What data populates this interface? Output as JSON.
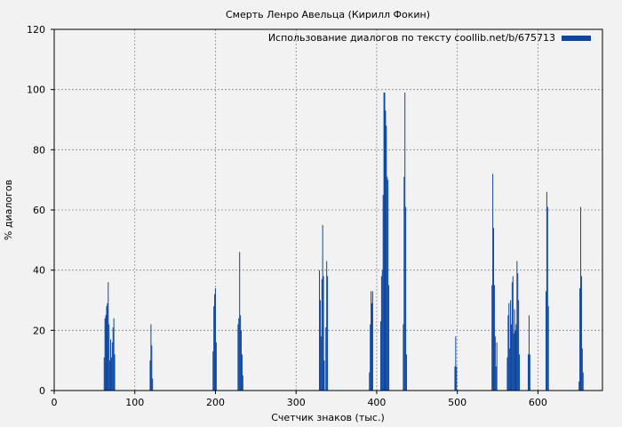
{
  "chart_data": {
    "type": "bar",
    "title": "Смерть Ленро Авельца (Кирилл Фокин)",
    "xlabel": "Счетчик знаков (тыс.)",
    "ylabel": "% диалогов",
    "xlim": [
      0,
      680
    ],
    "ylim": [
      0,
      120
    ],
    "xticks": [
      0,
      100,
      200,
      300,
      400,
      500,
      600
    ],
    "yticks": [
      0,
      20,
      40,
      60,
      80,
      100,
      120
    ],
    "grid": true,
    "legend_position": "top-right",
    "bar_color": "#0d47a1",
    "series": [
      {
        "name": "Использование диалогов по тексту coollib.net/b/675713",
        "points": [
          {
            "x": 62,
            "y": 11
          },
          {
            "x": 63,
            "y": 24
          },
          {
            "x": 64,
            "y": 25
          },
          {
            "x": 65,
            "y": 28
          },
          {
            "x": 66,
            "y": 29
          },
          {
            "x": 67,
            "y": 36
          },
          {
            "x": 68,
            "y": 22
          },
          {
            "x": 69,
            "y": 10
          },
          {
            "x": 70,
            "y": 17
          },
          {
            "x": 71,
            "y": 11
          },
          {
            "x": 72,
            "y": 16
          },
          {
            "x": 73,
            "y": 21
          },
          {
            "x": 74,
            "y": 24
          },
          {
            "x": 75,
            "y": 12
          },
          {
            "x": 119,
            "y": 10
          },
          {
            "x": 120,
            "y": 22
          },
          {
            "x": 121,
            "y": 15
          },
          {
            "x": 122,
            "y": 4
          },
          {
            "x": 197,
            "y": 13
          },
          {
            "x": 198,
            "y": 28
          },
          {
            "x": 199,
            "y": 32
          },
          {
            "x": 200,
            "y": 34
          },
          {
            "x": 201,
            "y": 16
          },
          {
            "x": 228,
            "y": 22
          },
          {
            "x": 229,
            "y": 24
          },
          {
            "x": 230,
            "y": 46
          },
          {
            "x": 231,
            "y": 25
          },
          {
            "x": 232,
            "y": 20
          },
          {
            "x": 233,
            "y": 12
          },
          {
            "x": 234,
            "y": 5
          },
          {
            "x": 329,
            "y": 40
          },
          {
            "x": 330,
            "y": 30
          },
          {
            "x": 331,
            "y": 18
          },
          {
            "x": 332,
            "y": 37
          },
          {
            "x": 333,
            "y": 55
          },
          {
            "x": 334,
            "y": 38
          },
          {
            "x": 335,
            "y": 10
          },
          {
            "x": 337,
            "y": 21
          },
          {
            "x": 338,
            "y": 43
          },
          {
            "x": 339,
            "y": 38
          },
          {
            "x": 391,
            "y": 6
          },
          {
            "x": 392,
            "y": 22
          },
          {
            "x": 393,
            "y": 33
          },
          {
            "x": 394,
            "y": 29
          },
          {
            "x": 395,
            "y": 33
          },
          {
            "x": 405,
            "y": 23
          },
          {
            "x": 406,
            "y": 38
          },
          {
            "x": 407,
            "y": 40
          },
          {
            "x": 408,
            "y": 65
          },
          {
            "x": 409,
            "y": 99
          },
          {
            "x": 410,
            "y": 99
          },
          {
            "x": 411,
            "y": 93
          },
          {
            "x": 412,
            "y": 88
          },
          {
            "x": 413,
            "y": 71
          },
          {
            "x": 414,
            "y": 70
          },
          {
            "x": 415,
            "y": 35
          },
          {
            "x": 433,
            "y": 22
          },
          {
            "x": 434,
            "y": 71
          },
          {
            "x": 435,
            "y": 99
          },
          {
            "x": 436,
            "y": 61
          },
          {
            "x": 437,
            "y": 12
          },
          {
            "x": 497,
            "y": 8
          },
          {
            "x": 498,
            "y": 18
          },
          {
            "x": 499,
            "y": 8
          },
          {
            "x": 543,
            "y": 35
          },
          {
            "x": 544,
            "y": 72
          },
          {
            "x": 545,
            "y": 54
          },
          {
            "x": 546,
            "y": 35
          },
          {
            "x": 547,
            "y": 18
          },
          {
            "x": 548,
            "y": 8
          },
          {
            "x": 549,
            "y": 16
          },
          {
            "x": 562,
            "y": 11
          },
          {
            "x": 563,
            "y": 25
          },
          {
            "x": 564,
            "y": 29
          },
          {
            "x": 565,
            "y": 14
          },
          {
            "x": 566,
            "y": 30
          },
          {
            "x": 567,
            "y": 22
          },
          {
            "x": 568,
            "y": 36
          },
          {
            "x": 569,
            "y": 38
          },
          {
            "x": 570,
            "y": 19
          },
          {
            "x": 571,
            "y": 27
          },
          {
            "x": 572,
            "y": 20
          },
          {
            "x": 573,
            "y": 22
          },
          {
            "x": 574,
            "y": 43
          },
          {
            "x": 575,
            "y": 39
          },
          {
            "x": 576,
            "y": 30
          },
          {
            "x": 577,
            "y": 12
          },
          {
            "x": 588,
            "y": 12
          },
          {
            "x": 589,
            "y": 25
          },
          {
            "x": 590,
            "y": 12
          },
          {
            "x": 610,
            "y": 33
          },
          {
            "x": 611,
            "y": 66
          },
          {
            "x": 612,
            "y": 61
          },
          {
            "x": 613,
            "y": 28
          },
          {
            "x": 651,
            "y": 3
          },
          {
            "x": 652,
            "y": 34
          },
          {
            "x": 653,
            "y": 61
          },
          {
            "x": 654,
            "y": 38
          },
          {
            "x": 655,
            "y": 14
          },
          {
            "x": 656,
            "y": 6
          }
        ]
      }
    ]
  }
}
